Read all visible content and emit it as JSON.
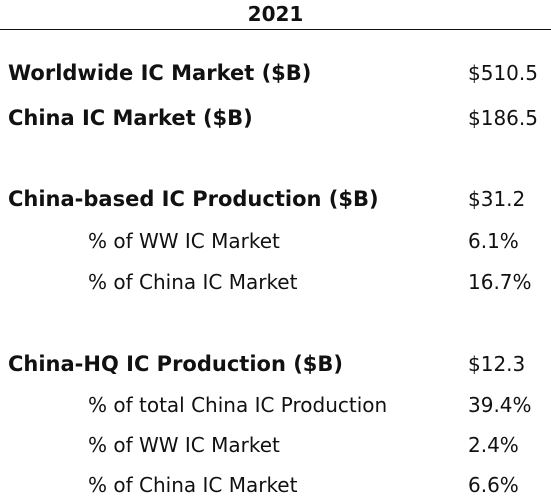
{
  "year": "2021",
  "rows": [
    {
      "label": "Worldwide IC Market ($B)",
      "value": "$510.5"
    },
    {
      "label": "China IC Market ($B)",
      "value": "$186.5"
    },
    {
      "label": "China-based IC Production ($B)",
      "value": "$31.2"
    },
    {
      "label": "% of WW IC Market",
      "value": "6.1%"
    },
    {
      "label": "% of China IC Market",
      "value": "16.7%"
    },
    {
      "label": "China-HQ IC Production ($B)",
      "value": "$12.3"
    },
    {
      "label": "% of total China IC Production",
      "value": "39.4%"
    },
    {
      "label": "% of WW IC Market",
      "value": "2.4%"
    },
    {
      "label": "% of China IC Market",
      "value": "6.6%"
    }
  ]
}
